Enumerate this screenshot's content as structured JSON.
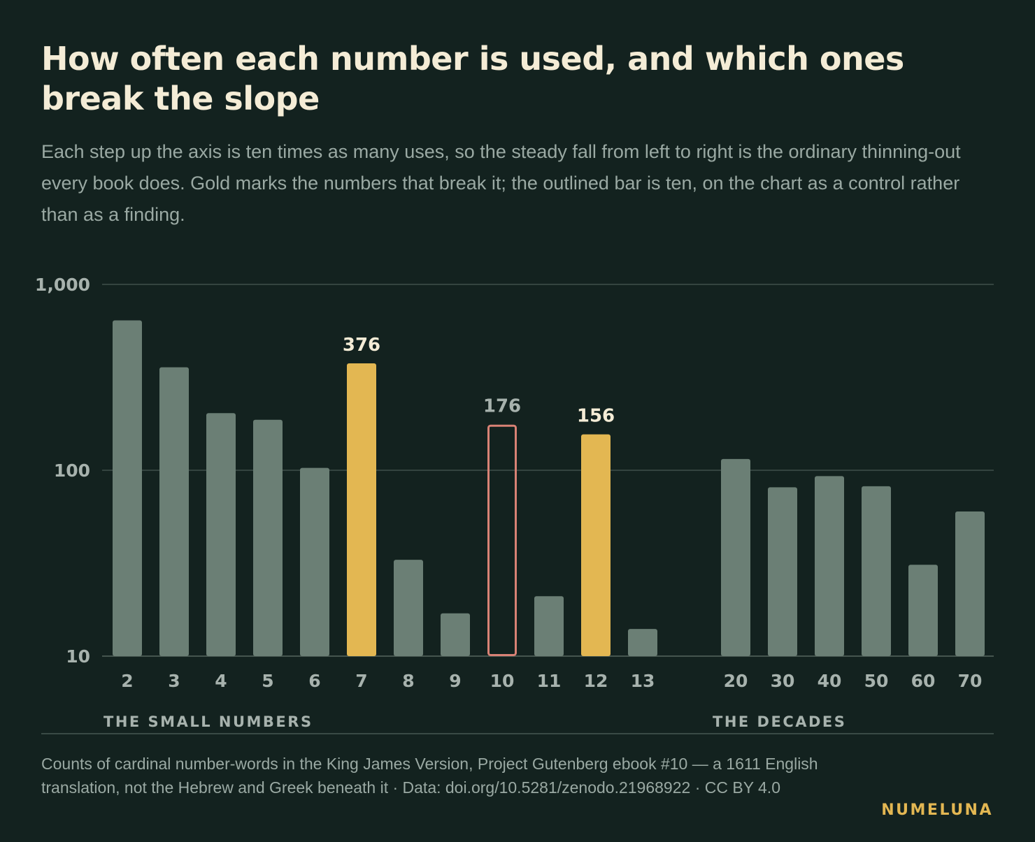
{
  "title": "How often each number is used, and which ones break the slope",
  "subtitle": "Each step up the axis is ten times as many uses, so the steady fall from left to right is the ordinary thinning-out every book does. Gold marks the numbers that break it; the outlined bar is ten, on the chart as a control rather than as a finding.",
  "source": "Counts of cardinal number-words in the King James Version, Project Gutenberg ebook #10 — a 1611 English translation, not the Hebrew and Greek beneath it · Data: doi.org/10.5281/zenodo.21968922 · CC BY 4.0",
  "brand": "NUMELUNA",
  "colors": {
    "background": "#13221f",
    "bar_default": "#6b7f75",
    "bar_highlight": "#e3b752",
    "bar_control_outline": "#d98275",
    "gridline": "#34443f"
  },
  "chart_data": {
    "type": "bar",
    "yscale": "log",
    "ylim": [
      10,
      1000
    ],
    "yticks": [
      {
        "value": 10,
        "label": "10"
      },
      {
        "value": 100,
        "label": "100"
      },
      {
        "value": 1000,
        "label": "1,000"
      }
    ],
    "grid": true,
    "groups": [
      {
        "label": "THE SMALL NUMBERS",
        "bars": [
          {
            "category": "2",
            "value": 640,
            "style": "default"
          },
          {
            "category": "3",
            "value": 358,
            "style": "default"
          },
          {
            "category": "4",
            "value": 203,
            "style": "default"
          },
          {
            "category": "5",
            "value": 187,
            "style": "default"
          },
          {
            "category": "6",
            "value": 103,
            "style": "default"
          },
          {
            "category": "7",
            "value": 376,
            "style": "highlight",
            "label": "376"
          },
          {
            "category": "8",
            "value": 33,
            "style": "default"
          },
          {
            "category": "9",
            "value": 17,
            "style": "default"
          },
          {
            "category": "10",
            "value": 176,
            "style": "control",
            "label": "176"
          },
          {
            "category": "11",
            "value": 21,
            "style": "default"
          },
          {
            "category": "12",
            "value": 156,
            "style": "highlight",
            "label": "156"
          },
          {
            "category": "13",
            "value": 14,
            "style": "default"
          }
        ]
      },
      {
        "label": "THE DECADES",
        "bars": [
          {
            "category": "20",
            "value": 115,
            "style": "default"
          },
          {
            "category": "30",
            "value": 81,
            "style": "default"
          },
          {
            "category": "40",
            "value": 93,
            "style": "default"
          },
          {
            "category": "50",
            "value": 82,
            "style": "default"
          },
          {
            "category": "60",
            "value": 31,
            "style": "default"
          },
          {
            "category": "70",
            "value": 60,
            "style": "default"
          }
        ]
      }
    ]
  }
}
